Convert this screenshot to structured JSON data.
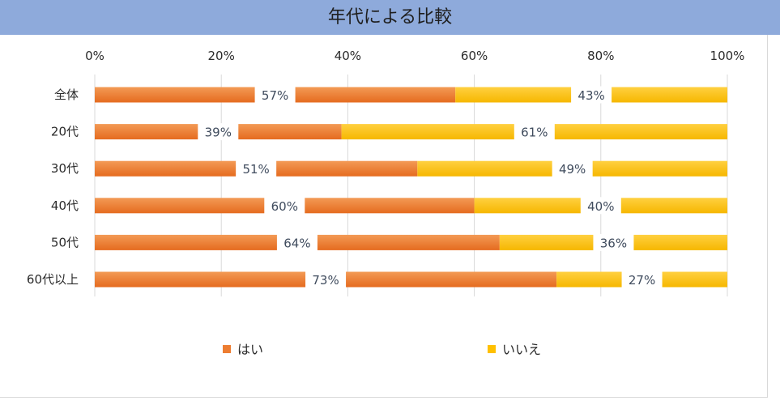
{
  "header": {
    "title": "年代による比較"
  },
  "chart_data": {
    "type": "bar",
    "orientation": "horizontal",
    "stacked": "percent",
    "title": "年代による比較",
    "categories": [
      "全体",
      "20代",
      "30代",
      "40代",
      "50代",
      "60代以上"
    ],
    "series": [
      {
        "name": "はい",
        "values": [
          57,
          39,
          51,
          60,
          64,
          73
        ],
        "labels": [
          "57%",
          "39%",
          "51%",
          "60%",
          "64%",
          "73%"
        ]
      },
      {
        "name": "いいえ",
        "values": [
          43,
          61,
          49,
          40,
          36,
          27
        ],
        "labels": [
          "43%",
          "61%",
          "49%",
          "40%",
          "36%",
          "27%"
        ]
      }
    ],
    "xticks": [
      "0%",
      "20%",
      "40%",
      "60%",
      "80%",
      "100%"
    ],
    "xlim": [
      0,
      100
    ],
    "axis_position": "top",
    "legend_position": "bottom",
    "grid": true,
    "colors": [
      "#ed7d31",
      "#ffc000"
    ]
  }
}
